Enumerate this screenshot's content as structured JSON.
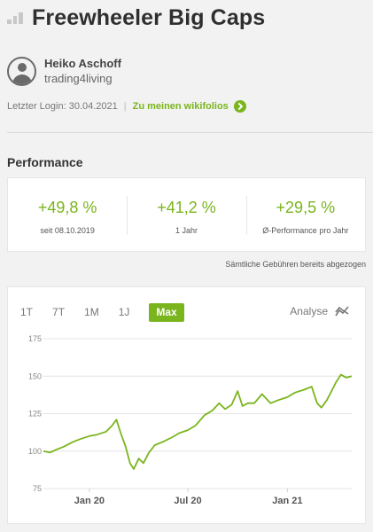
{
  "header": {
    "title": "Freewheeler Big Caps"
  },
  "user": {
    "name": "Heiko Aschoff",
    "handle": "trading4living"
  },
  "login": {
    "label": "Letzter Login: 30.04.2021",
    "separator": "|",
    "link_label": "Zu meinen wikifolios"
  },
  "performance": {
    "title": "Performance",
    "cards": [
      {
        "value": "+49,8 %",
        "label": "seit 08.10.2019"
      },
      {
        "value": "+41,2 %",
        "label": "1 Jahr"
      },
      {
        "value": "+29,5 %",
        "label": "Ø-Performance pro Jahr"
      }
    ],
    "fees_note": "Sämtliche Gebühren bereits abgezogen"
  },
  "chart_controls": {
    "tabs": [
      "1T",
      "7T",
      "1M",
      "1J",
      "Max"
    ],
    "active_tab": "Max",
    "analyse_label": "Analyse",
    "analyse_icon": "analyse-chart-icon"
  },
  "colors": {
    "accent": "#7ab51d",
    "text": "#333333",
    "muted": "#777777"
  },
  "chart_data": {
    "type": "line",
    "title": "",
    "xlabel": "",
    "ylabel": "",
    "ylim": [
      75,
      175
    ],
    "yticks": [
      75,
      100,
      125,
      150,
      175
    ],
    "xticks": [
      {
        "label": "Jan 20",
        "x": "2020-01-01"
      },
      {
        "label": "Jul 20",
        "x": "2020-07-01"
      },
      {
        "label": "Jan 21",
        "x": "2021-01-01"
      }
    ],
    "x_range": [
      "2019-10-08",
      "2021-04-30"
    ],
    "grid": true,
    "series": [
      {
        "color": "#7ab51d",
        "points": [
          [
            "2019-10-08",
            100
          ],
          [
            "2019-10-20",
            99
          ],
          [
            "2019-11-01",
            101
          ],
          [
            "2019-11-15",
            103
          ],
          [
            "2019-12-01",
            106
          ],
          [
            "2019-12-15",
            108
          ],
          [
            "2020-01-01",
            110
          ],
          [
            "2020-01-15",
            111
          ],
          [
            "2020-02-01",
            113
          ],
          [
            "2020-02-12",
            117
          ],
          [
            "2020-02-20",
            121
          ],
          [
            "2020-02-28",
            112
          ],
          [
            "2020-03-08",
            103
          ],
          [
            "2020-03-16",
            92
          ],
          [
            "2020-03-23",
            88
          ],
          [
            "2020-04-01",
            95
          ],
          [
            "2020-04-10",
            92
          ],
          [
            "2020-04-20",
            99
          ],
          [
            "2020-05-01",
            104
          ],
          [
            "2020-05-15",
            106
          ],
          [
            "2020-06-01",
            109
          ],
          [
            "2020-06-15",
            112
          ],
          [
            "2020-07-01",
            114
          ],
          [
            "2020-07-15",
            117
          ],
          [
            "2020-08-01",
            124
          ],
          [
            "2020-08-15",
            127
          ],
          [
            "2020-08-28",
            132
          ],
          [
            "2020-09-08",
            128
          ],
          [
            "2020-09-20",
            131
          ],
          [
            "2020-10-01",
            140
          ],
          [
            "2020-10-10",
            130
          ],
          [
            "2020-10-20",
            132
          ],
          [
            "2020-11-01",
            132
          ],
          [
            "2020-11-15",
            138
          ],
          [
            "2020-12-01",
            132
          ],
          [
            "2020-12-15",
            134
          ],
          [
            "2021-01-01",
            136
          ],
          [
            "2021-01-15",
            139
          ],
          [
            "2021-02-01",
            141
          ],
          [
            "2021-02-15",
            143
          ],
          [
            "2021-02-25",
            132
          ],
          [
            "2021-03-05",
            129
          ],
          [
            "2021-03-15",
            134
          ],
          [
            "2021-03-25",
            141
          ],
          [
            "2021-04-01",
            146
          ],
          [
            "2021-04-10",
            151
          ],
          [
            "2021-04-20",
            149
          ],
          [
            "2021-04-30",
            150
          ]
        ]
      }
    ]
  }
}
